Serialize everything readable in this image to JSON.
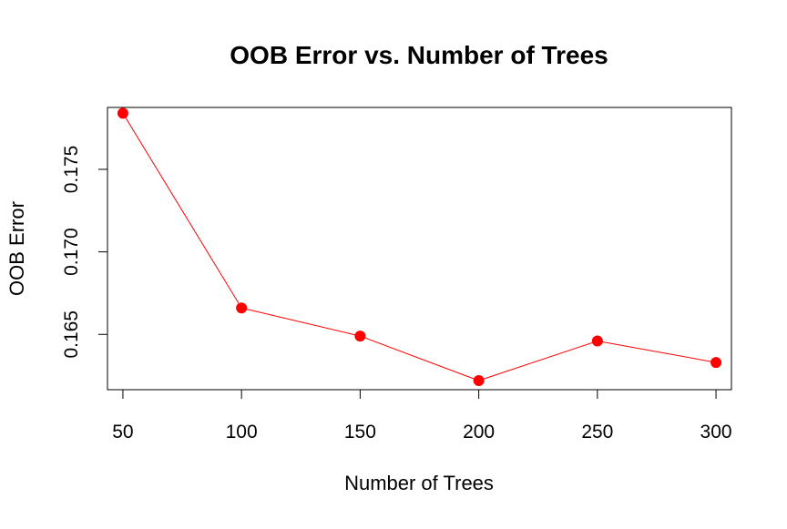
{
  "chart_data": {
    "type": "line",
    "title": "OOB Error vs. Number of Trees",
    "xlabel": "Number of Trees",
    "ylabel": "OOB Error",
    "x": [
      50,
      100,
      150,
      200,
      250,
      300
    ],
    "series": [
      {
        "values": [
          0.1784,
          0.1666,
          0.1649,
          0.1622,
          0.1646,
          0.1633
        ]
      }
    ],
    "x_ticks": [
      "50",
      "100",
      "150",
      "200",
      "250",
      "300"
    ],
    "y_ticks": [
      "0.165",
      "0.170",
      "0.175"
    ],
    "xlim": [
      43.5,
      306.5
    ],
    "ylim": [
      0.16165,
      0.17875
    ],
    "grid": false,
    "legend": "none",
    "colors": {
      "line": "#ff0000",
      "points": "#ff0000",
      "axis": "#000000"
    }
  }
}
